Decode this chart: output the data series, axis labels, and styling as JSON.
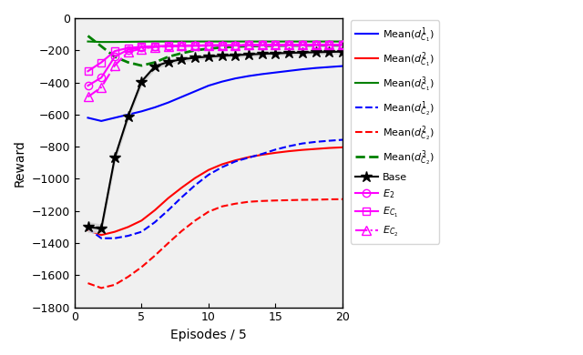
{
  "xlabel": "Episodes / 5",
  "ylabel": "Reward",
  "xlim": [
    0,
    20
  ],
  "ylim": [
    -1800,
    0
  ],
  "yticks": [
    0,
    -200,
    -400,
    -600,
    -800,
    -1000,
    -1200,
    -1400,
    -1600,
    -1800
  ],
  "xticks": [
    0,
    5,
    10,
    15,
    20
  ],
  "colors": {
    "blue": "#0000FF",
    "red": "#FF0000",
    "green": "#008000",
    "black": "#000000",
    "magenta": "#FF00FF"
  },
  "x": [
    1,
    2,
    3,
    4,
    5,
    6,
    7,
    8,
    9,
    10,
    11,
    12,
    13,
    14,
    15,
    16,
    17,
    18,
    19,
    20
  ],
  "mean_dC1_1": [
    -620,
    -640,
    -620,
    -600,
    -580,
    -555,
    -525,
    -490,
    -455,
    -420,
    -395,
    -375,
    -360,
    -348,
    -338,
    -328,
    -318,
    -310,
    -304,
    -298
  ],
  "mean_dC1_2": [
    -1320,
    -1350,
    -1330,
    -1300,
    -1260,
    -1195,
    -1120,
    -1055,
    -995,
    -945,
    -910,
    -885,
    -865,
    -850,
    -838,
    -828,
    -820,
    -814,
    -808,
    -804
  ],
  "mean_dC1_3": [
    -145,
    -148,
    -148,
    -147,
    -146,
    -145,
    -145,
    -145,
    -145,
    -145,
    -145,
    -145,
    -145,
    -145,
    -145,
    -145,
    -145,
    -145,
    -145,
    -145
  ],
  "mean_dC2_1": [
    -1310,
    -1370,
    -1370,
    -1355,
    -1330,
    -1270,
    -1195,
    -1115,
    -1040,
    -975,
    -928,
    -892,
    -868,
    -845,
    -818,
    -797,
    -780,
    -770,
    -763,
    -757
  ],
  "mean_dC2_2": [
    -1650,
    -1680,
    -1660,
    -1610,
    -1550,
    -1478,
    -1400,
    -1325,
    -1260,
    -1205,
    -1172,
    -1155,
    -1143,
    -1138,
    -1135,
    -1133,
    -1131,
    -1130,
    -1128,
    -1127
  ],
  "mean_dC2_3": [
    -110,
    -175,
    -240,
    -275,
    -295,
    -275,
    -240,
    -218,
    -200,
    -190,
    -182,
    -177,
    -174,
    -172,
    -171,
    -170,
    -170,
    -169,
    -169,
    -169
  ],
  "base_mean": [
    -1300,
    -1310,
    -870,
    -610,
    -395,
    -300,
    -272,
    -256,
    -246,
    -239,
    -234,
    -230,
    -226,
    -222,
    -219,
    -216,
    -214,
    -212,
    -210,
    -208
  ],
  "base_std_upper": [
    -1270,
    -1285,
    -848,
    -592,
    -380,
    -286,
    -260,
    -244,
    -235,
    -228,
    -223,
    -219,
    -215,
    -211,
    -209,
    -206,
    -204,
    -202,
    -200,
    -198
  ],
  "base_std_lower": [
    -1330,
    -1335,
    -892,
    -628,
    -410,
    -314,
    -284,
    -268,
    -257,
    -250,
    -245,
    -241,
    -237,
    -233,
    -229,
    -226,
    -224,
    -222,
    -220,
    -218
  ],
  "E2": [
    -420,
    -370,
    -240,
    -196,
    -182,
    -177,
    -174,
    -173,
    -172,
    -171,
    -170,
    -170,
    -169,
    -169,
    -168,
    -168,
    -168,
    -167,
    -167,
    -167
  ],
  "EC1": [
    -330,
    -275,
    -205,
    -185,
    -178,
    -174,
    -172,
    -170,
    -169,
    -169,
    -168,
    -168,
    -167,
    -167,
    -167,
    -166,
    -166,
    -166,
    -165,
    -165
  ],
  "EC2": [
    -490,
    -430,
    -295,
    -210,
    -190,
    -179,
    -175,
    -172,
    -170,
    -169,
    -168,
    -168,
    -167,
    -167,
    -166,
    -166,
    -165,
    -165,
    -165,
    -165
  ]
}
